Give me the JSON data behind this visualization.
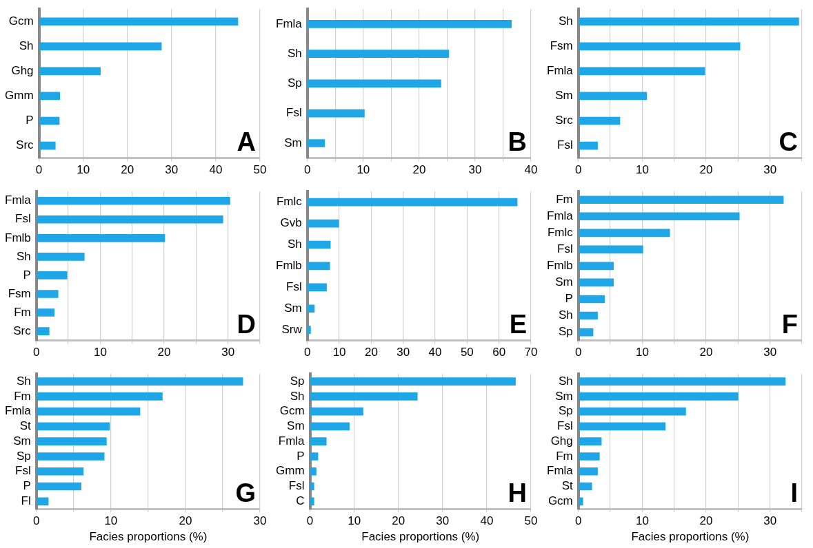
{
  "chart_data": [
    {
      "type": "bar",
      "orientation": "horizontal",
      "categories": [
        "Gcm",
        "Sh",
        "Ghg",
        "Gmm",
        "P",
        "Src"
      ],
      "values": [
        45.0,
        27.7,
        13.9,
        4.7,
        4.6,
        3.7
      ],
      "color": "#1ea6e6",
      "xlim": [
        0,
        50
      ],
      "xticks": [
        0,
        10,
        20,
        30,
        40,
        50
      ],
      "grid": "x",
      "annotations": [
        "A"
      ]
    },
    {
      "type": "bar",
      "orientation": "horizontal",
      "categories": [
        "Fmla",
        "Sh",
        "Sp",
        "Fsl",
        "Sm"
      ],
      "values": [
        36.5,
        25.3,
        23.9,
        10.2,
        3.1
      ],
      "color": "#1ea6e6",
      "xlim": [
        0,
        40
      ],
      "xticks": [
        0,
        {
          "value": 5,
          "label": null
        },
        10,
        {
          "value": 15,
          "label": null
        },
        20,
        {
          "value": 25,
          "label": null
        },
        30,
        {
          "value": 35,
          "label": null
        },
        40
      ],
      "grid": "x",
      "annotations": [
        "B"
      ]
    },
    {
      "type": "bar",
      "orientation": "horizontal",
      "categories": [
        "Sh",
        "Fsm",
        "Fmla",
        "Sm",
        "Src",
        "Fsl"
      ],
      "values": [
        34.5,
        25.3,
        19.8,
        10.7,
        6.5,
        3.0
      ],
      "color": "#1ea6e6",
      "xlim": [
        0,
        35
      ],
      "xticks": [
        0,
        {
          "value": 5,
          "label": null
        },
        10,
        {
          "value": 15,
          "label": null
        },
        20,
        {
          "value": 25,
          "label": null
        },
        30,
        {
          "value": 35,
          "label": null
        }
      ],
      "grid": "x",
      "annotations": [
        "C"
      ]
    },
    {
      "type": "bar",
      "orientation": "horizontal",
      "categories": [
        "Fmla",
        "Fsl",
        "Fmlb",
        "Sh",
        "P",
        "Fsm",
        "Fm",
        "Src"
      ],
      "values": [
        30.3,
        29.2,
        20.1,
        7.5,
        4.8,
        3.4,
        2.8,
        2.0
      ],
      "color": "#1ea6e6",
      "xlim": [
        0,
        35
      ],
      "xticks": [
        0,
        {
          "value": 5,
          "label": null
        },
        10,
        {
          "value": 15,
          "label": null
        },
        20,
        {
          "value": 25,
          "label": null
        },
        30,
        {
          "value": 35,
          "label": null
        }
      ],
      "grid": "x",
      "annotations": [
        "D"
      ]
    },
    {
      "type": "bar",
      "orientation": "horizontal",
      "categories": [
        "Fmlc",
        "Gvb",
        "Sh",
        "Fmlb",
        "Fsl",
        "Sm",
        "Srw"
      ],
      "values": [
        65.7,
        9.8,
        7.2,
        7.0,
        6.0,
        2.2,
        1.0
      ],
      "color": "#1ea6e6",
      "xlim": [
        0,
        70
      ],
      "xticks": [
        0,
        10,
        20,
        30,
        40,
        50,
        60,
        70
      ],
      "grid": "x",
      "annotations": [
        "E"
      ]
    },
    {
      "type": "bar",
      "orientation": "horizontal",
      "categories": [
        "Fm",
        "Fmla",
        "Fmlc",
        "Fsl",
        "Fmlb",
        "Sm",
        "P",
        "Sh",
        "Sp"
      ],
      "values": [
        32.1,
        25.2,
        14.3,
        10.1,
        5.5,
        5.5,
        4.1,
        3.0,
        2.3
      ],
      "color": "#1ea6e6",
      "xlim": [
        0,
        35
      ],
      "xticks": [
        0,
        {
          "value": 5,
          "label": null
        },
        10,
        {
          "value": 15,
          "label": null
        },
        20,
        {
          "value": 25,
          "label": null
        },
        30,
        {
          "value": 35,
          "label": null
        }
      ],
      "grid": "x",
      "annotations": [
        "F"
      ]
    },
    {
      "type": "bar",
      "orientation": "horizontal",
      "categories": [
        "Sh",
        "Fm",
        "Fmla",
        "St",
        "Sm",
        "Sp",
        "Fsl",
        "P",
        "Fl"
      ],
      "values": [
        27.7,
        16.9,
        13.9,
        9.8,
        9.4,
        9.1,
        6.3,
        6.0,
        1.6
      ],
      "color": "#1ea6e6",
      "xlim": [
        0,
        30
      ],
      "xticks": [
        0,
        {
          "value": 5,
          "label": null
        },
        10,
        {
          "value": 15,
          "label": null
        },
        20,
        {
          "value": 25,
          "label": null
        },
        30
      ],
      "grid": "x",
      "xlabel": "Facies proportions (%)",
      "annotations": [
        "G"
      ]
    },
    {
      "type": "bar",
      "orientation": "horizontal",
      "categories": [
        "Sp",
        "Sh",
        "Gcm",
        "Sm",
        "Fmla",
        "P",
        "Gmm",
        "Fsl",
        "C"
      ],
      "values": [
        46.5,
        24.3,
        12.0,
        8.9,
        3.7,
        1.8,
        1.4,
        0.9,
        0.9
      ],
      "color": "#1ea6e6",
      "xlim": [
        0,
        50
      ],
      "xticks": [
        0,
        10,
        20,
        30,
        40,
        50
      ],
      "grid": "x",
      "xlabel": "Facies proportions (%)",
      "annotations": [
        "H"
      ]
    },
    {
      "type": "bar",
      "orientation": "horizontal",
      "categories": [
        "Sh",
        "Sm",
        "Sp",
        "Fsl",
        "Ghg",
        "Fm",
        "Fmla",
        "St",
        "Gcm"
      ],
      "values": [
        32.4,
        25.0,
        16.8,
        13.6,
        3.6,
        3.3,
        3.0,
        2.1,
        0.7
      ],
      "color": "#1ea6e6",
      "xlim": [
        0,
        35
      ],
      "xticks": [
        0,
        {
          "value": 5,
          "label": null
        },
        10,
        {
          "value": 15,
          "label": null
        },
        20,
        {
          "value": 25,
          "label": null
        },
        30,
        {
          "value": 35,
          "label": null
        }
      ],
      "grid": "x",
      "xlabel": "Facies proportions (%)",
      "annotations": [
        "I"
      ]
    }
  ]
}
